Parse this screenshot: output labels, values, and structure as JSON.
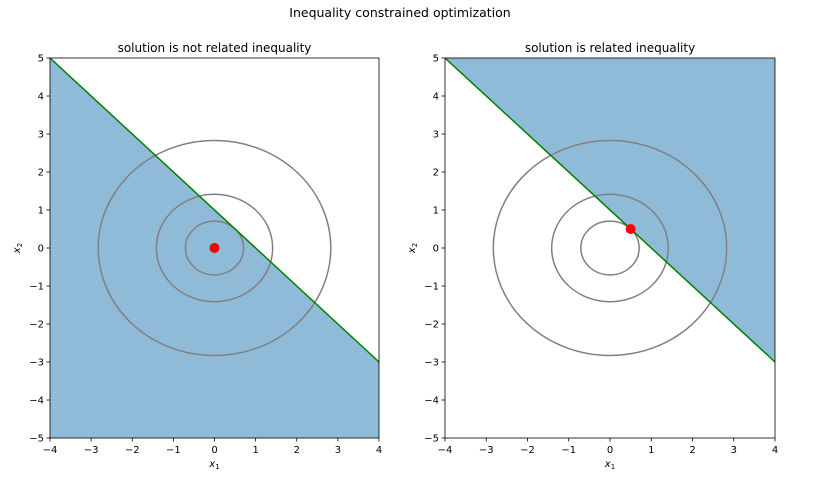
{
  "figure": {
    "suptitle": "Inequality constrained optimization"
  },
  "chart_data": [
    {
      "type": "contour",
      "title": "solution is not related inequality",
      "xlabel": "x",
      "xlabel_sub": "1",
      "ylabel": "x",
      "ylabel_sub": "2",
      "xlim": [
        -4,
        4
      ],
      "ylim": [
        -5,
        5
      ],
      "xticks": [
        -4,
        -3,
        -2,
        -1,
        0,
        1,
        2,
        3,
        4
      ],
      "yticks": [
        -5,
        -4,
        -3,
        -2,
        -1,
        0,
        1,
        2,
        3,
        4,
        5
      ],
      "contour_radii": [
        0.707,
        1.414,
        2.828
      ],
      "contour_color": "#808080",
      "constraint_line": {
        "x": [
          -4,
          4
        ],
        "y": [
          5,
          -3
        ],
        "color": "#008000"
      },
      "feasible_region": {
        "side": "below",
        "color": "#1f77b4",
        "alpha": 0.5
      },
      "solution_point": {
        "x": 0,
        "y": 0,
        "color": "#ff0000"
      }
    },
    {
      "type": "contour",
      "title": "solution is related inequality",
      "xlabel": "x",
      "xlabel_sub": "1",
      "ylabel": "x",
      "ylabel_sub": "2",
      "xlim": [
        -4,
        4
      ],
      "ylim": [
        -5,
        5
      ],
      "xticks": [
        -4,
        -3,
        -2,
        -1,
        0,
        1,
        2,
        3,
        4
      ],
      "yticks": [
        -5,
        -4,
        -3,
        -2,
        -1,
        0,
        1,
        2,
        3,
        4,
        5
      ],
      "contour_radii": [
        0.707,
        1.414,
        2.828
      ],
      "contour_color": "#808080",
      "constraint_line": {
        "x": [
          -4,
          4
        ],
        "y": [
          5,
          -3
        ],
        "color": "#008000"
      },
      "feasible_region": {
        "side": "above",
        "color": "#1f77b4",
        "alpha": 0.5
      },
      "solution_point": {
        "x": 0.5,
        "y": 0.5,
        "color": "#ff0000"
      }
    }
  ]
}
